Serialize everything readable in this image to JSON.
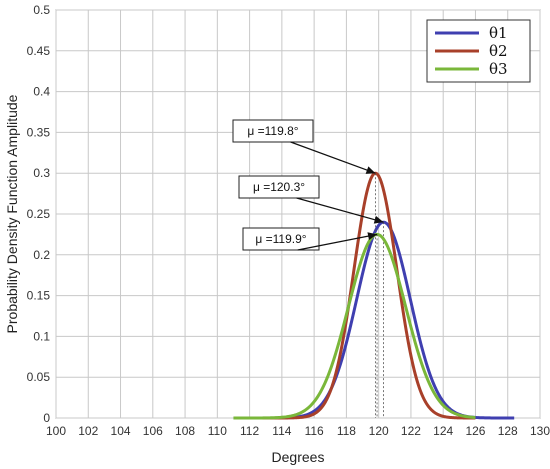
{
  "chart_data": {
    "type": "line",
    "title": "",
    "xlabel": "Degrees",
    "ylabel": "Probability Density Function Amplitude",
    "xlim": [
      100,
      130
    ],
    "ylim": [
      0,
      0.5
    ],
    "xticks": [
      100,
      102,
      104,
      106,
      108,
      110,
      112,
      114,
      116,
      118,
      120,
      122,
      124,
      126,
      128,
      130
    ],
    "yticks": [
      "0",
      "0.05",
      "0.1",
      "0.15",
      "0.2",
      "0.25",
      "0.3",
      "0.35",
      "0.4",
      "0.45",
      "0.5"
    ],
    "grid": true,
    "legend_position": "top-right",
    "series": [
      {
        "name": "θ1",
        "color": "#3f3fb0",
        "mu": 120.3,
        "peak": 0.24,
        "x_range": [
          111,
          128.4
        ]
      },
      {
        "name": "θ2",
        "color": "#a8402a",
        "mu": 119.8,
        "peak": 0.3,
        "x_range": [
          112.3,
          126
        ]
      },
      {
        "name": "θ3",
        "color": "#7ab73a",
        "mu": 119.9,
        "peak": 0.225,
        "x_range": [
          111,
          126
        ]
      }
    ],
    "annotations": [
      {
        "text": "μ =119.8°",
        "target_series": "θ2"
      },
      {
        "text": "μ =120.3°",
        "target_series": "θ1"
      },
      {
        "text": "μ =119.9°",
        "target_series": "θ3"
      }
    ]
  }
}
